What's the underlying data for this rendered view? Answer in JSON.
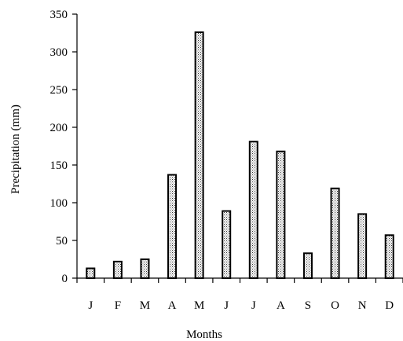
{
  "chart_data": {
    "type": "bar",
    "categories": [
      "J",
      "F",
      "M",
      "A",
      "M",
      "J",
      "J",
      "A",
      "S",
      "O",
      "N",
      "D"
    ],
    "values": [
      13,
      22,
      25,
      137,
      326,
      89,
      181,
      168,
      33,
      119,
      85,
      57
    ],
    "xlabel": "Months",
    "ylabel": "Precipitation (mm)",
    "ylim": [
      0,
      350
    ],
    "yticks": [
      0,
      50,
      100,
      150,
      200,
      250,
      300,
      350
    ],
    "bar_fill": "dotted-pattern",
    "bar_stroke": "#000000",
    "grid": false,
    "legend": "none"
  }
}
